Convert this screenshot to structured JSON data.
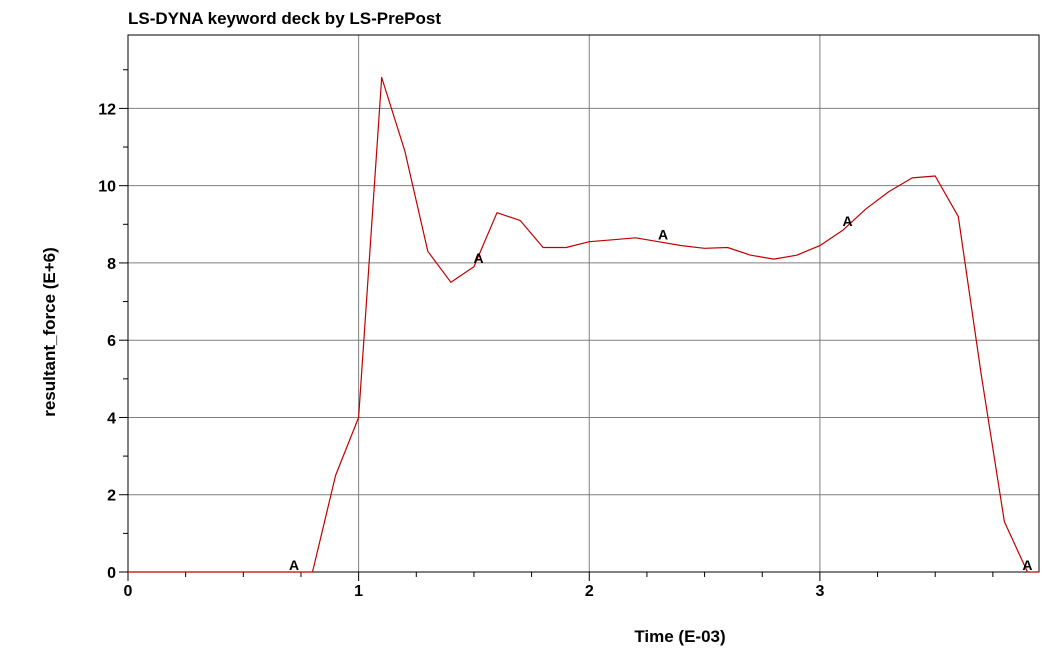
{
  "chart_data": {
    "type": "line",
    "title": "LS-DYNA keyword deck by LS-PrePost",
    "xlabel": "Time (E-03)",
    "ylabel": "resultant_force (E+6)",
    "xlim": [
      0,
      3.95
    ],
    "ylim": [
      0,
      13.9
    ],
    "x_ticks": [
      0,
      1,
      2,
      3
    ],
    "y_ticks": [
      0,
      2,
      4,
      6,
      8,
      10,
      12
    ],
    "grid": true,
    "line_color": "#c00000",
    "series": [
      {
        "marker": "A",
        "points": [
          [
            0.0,
            0.0
          ],
          [
            0.1,
            0.0
          ],
          [
            0.2,
            0.0
          ],
          [
            0.3,
            0.0
          ],
          [
            0.4,
            0.0
          ],
          [
            0.5,
            0.0
          ],
          [
            0.6,
            0.0
          ],
          [
            0.7,
            0.0
          ],
          [
            0.8,
            0.0
          ],
          [
            0.9,
            2.5
          ],
          [
            1.0,
            4.0
          ],
          [
            1.1,
            12.8
          ],
          [
            1.2,
            10.9
          ],
          [
            1.3,
            8.3
          ],
          [
            1.4,
            7.5
          ],
          [
            1.5,
            7.9
          ],
          [
            1.6,
            9.3
          ],
          [
            1.7,
            9.1
          ],
          [
            1.8,
            8.4
          ],
          [
            1.9,
            8.4
          ],
          [
            2.0,
            8.55
          ],
          [
            2.1,
            8.6
          ],
          [
            2.2,
            8.65
          ],
          [
            2.3,
            8.55
          ],
          [
            2.4,
            8.45
          ],
          [
            2.5,
            8.38
          ],
          [
            2.6,
            8.4
          ],
          [
            2.7,
            8.2
          ],
          [
            2.8,
            8.1
          ],
          [
            2.9,
            8.2
          ],
          [
            3.0,
            8.45
          ],
          [
            3.1,
            8.85
          ],
          [
            3.2,
            9.4
          ],
          [
            3.3,
            9.85
          ],
          [
            3.4,
            10.2
          ],
          [
            3.5,
            10.25
          ],
          [
            3.6,
            9.2
          ],
          [
            3.7,
            5.1
          ],
          [
            3.8,
            1.3
          ],
          [
            3.9,
            0.0
          ],
          [
            3.95,
            0.0
          ]
        ],
        "marker_points": [
          [
            0.72,
            0.0
          ],
          [
            1.52,
            7.95
          ],
          [
            2.32,
            8.55
          ],
          [
            3.12,
            8.9
          ],
          [
            3.9,
            0.0
          ]
        ]
      }
    ]
  }
}
